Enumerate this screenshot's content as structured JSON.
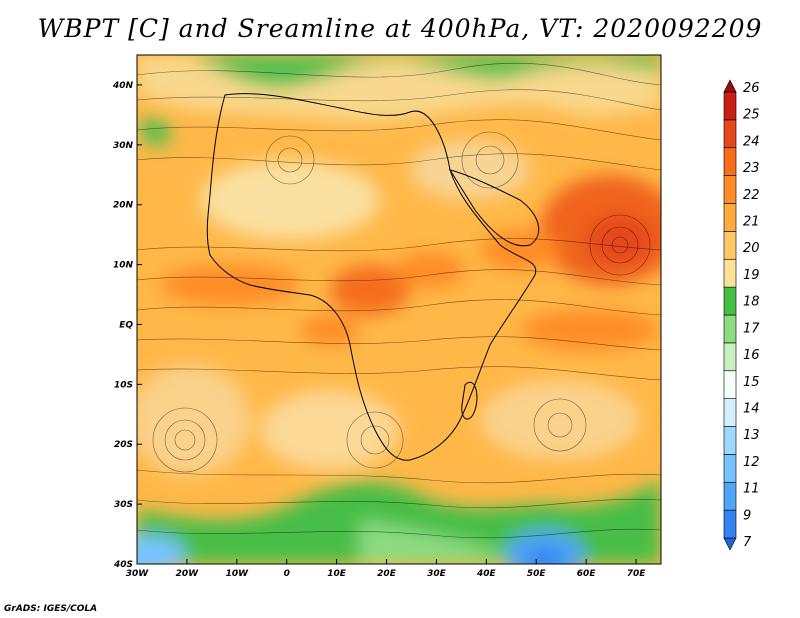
{
  "title": "WBPT [C] and Sreamline at 400hPa, VT: 2020092209",
  "credit": "GrADS: IGES/COLA",
  "map": {
    "lon_range": [
      -30,
      75
    ],
    "lat_range": [
      -40,
      45
    ],
    "lon_ticks": [
      {
        "value": -30,
        "label": "30W"
      },
      {
        "value": -20,
        "label": "20W"
      },
      {
        "value": -10,
        "label": "10W"
      },
      {
        "value": 0,
        "label": "0"
      },
      {
        "value": 10,
        "label": "10E"
      },
      {
        "value": 20,
        "label": "20E"
      },
      {
        "value": 30,
        "label": "30E"
      },
      {
        "value": 40,
        "label": "40E"
      },
      {
        "value": 50,
        "label": "50E"
      },
      {
        "value": 60,
        "label": "60E"
      },
      {
        "value": 70,
        "label": "70E"
      }
    ],
    "lat_ticks": [
      {
        "value": 40,
        "label": "40N"
      },
      {
        "value": 30,
        "label": "30N"
      },
      {
        "value": 20,
        "label": "20N"
      },
      {
        "value": 10,
        "label": "10N"
      },
      {
        "value": 0,
        "label": "EQ"
      },
      {
        "value": -10,
        "label": "10S"
      },
      {
        "value": -20,
        "label": "20S"
      },
      {
        "value": -30,
        "label": "30S"
      },
      {
        "value": -40,
        "label": "40S"
      }
    ]
  },
  "colorbar": {
    "labels": [
      "7",
      "9",
      "11",
      "12",
      "13",
      "14",
      "15",
      "16",
      "17",
      "18",
      "19",
      "20",
      "21",
      "22",
      "23",
      "24",
      "25",
      "26"
    ],
    "colors": [
      "#1e64dc",
      "#3282f0",
      "#50a5f5",
      "#78c3ff",
      "#a0d7ff",
      "#d2f0ff",
      "#f5fff5",
      "#c8f0c0",
      "#8cdc82",
      "#46be46",
      "#fae196",
      "#ffc864",
      "#ffaa3c",
      "#ff8c28",
      "#f56e1e",
      "#e6461e",
      "#c81e14",
      "#a00a0a"
    ]
  }
}
